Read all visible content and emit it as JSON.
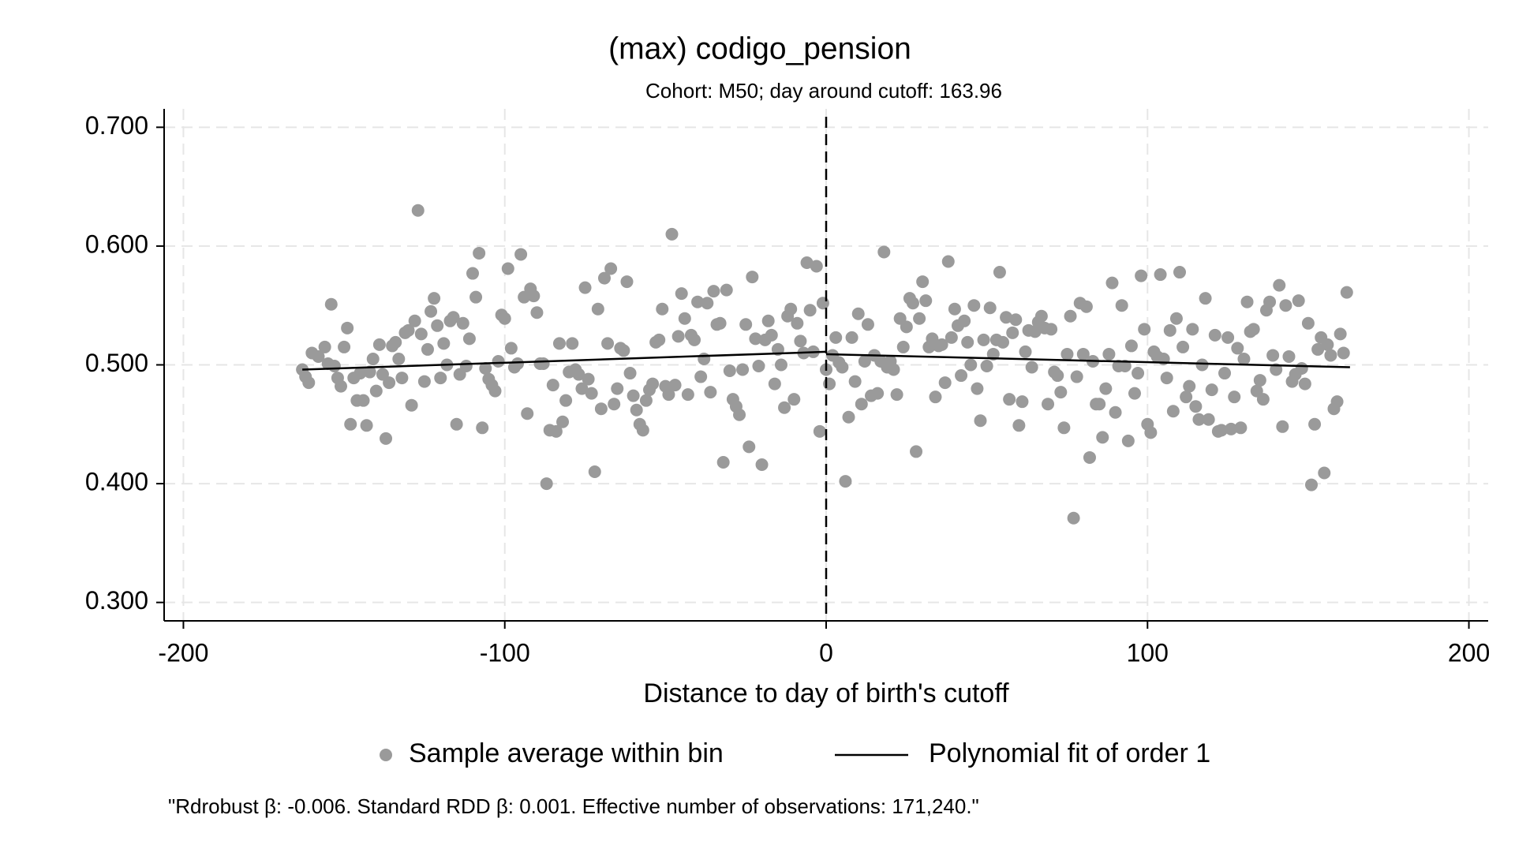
{
  "chart_data": {
    "type": "scatter",
    "title": "(max) codigo_pension",
    "subtitle": "Cohort: M50; day around cutoff: 163.96",
    "xlabel": "Distance to day of birth's cutoff",
    "note": "\"Rdrobust β: -0.006. Standard RDD β: 0.001. Effective number of observations: 171,240.\"",
    "xlim": [
      -206,
      206
    ],
    "ylim": [
      0.2845,
      0.7155
    ],
    "xticks": [
      -200,
      -100,
      0,
      100,
      200
    ],
    "yticks": [
      {
        "value": 0.3,
        "label": "0.300"
      },
      {
        "value": 0.4,
        "label": "0.400"
      },
      {
        "value": 0.5,
        "label": "0.500"
      },
      {
        "value": 0.6,
        "label": "0.600"
      },
      {
        "value": 0.7,
        "label": "0.700"
      }
    ],
    "grid": true,
    "cutoff": 0,
    "series": [
      {
        "name": "Sample average within bin",
        "color": "#9a9a9a",
        "x": [
          -163,
          -162,
          -161,
          -160,
          -158,
          -156,
          -155,
          -154,
          -153,
          -152,
          -151,
          -150,
          -149,
          -148,
          -147,
          -146,
          -145,
          -144,
          -143,
          -142,
          -141,
          -140,
          -139,
          -138,
          -137,
          -136,
          -135,
          -134,
          -133,
          -132,
          -131,
          -130,
          -129,
          -128,
          -127,
          -126,
          -125,
          -124,
          -123,
          -122,
          -121,
          -120,
          -119,
          -118,
          -117,
          -116,
          -115,
          -114,
          -113,
          -112,
          -111,
          -110,
          -109,
          -108,
          -107,
          -106,
          -105,
          -104,
          -103,
          -102,
          -101,
          -100,
          -99,
          -98,
          -97,
          -96,
          -95,
          -94,
          -93,
          -92,
          -91,
          -90,
          -89,
          -88,
          -87,
          -86,
          -85,
          -84,
          -83,
          -82,
          -81,
          -80,
          -79,
          -78,
          -77,
          -76,
          -75,
          -74,
          -73,
          -72,
          -71,
          -70,
          -69,
          -68,
          -67,
          -66,
          -65,
          -64,
          -63,
          -62,
          -61,
          -60,
          -59,
          -58,
          -57,
          -56,
          -55,
          -54,
          -53,
          -52,
          -51,
          -50,
          -49,
          -48,
          -47,
          -46,
          -45,
          -44,
          -43,
          -42,
          -41,
          -40,
          -39,
          -38,
          -37,
          -36,
          -35,
          -34,
          -33,
          -32,
          -31,
          -30,
          -29,
          -28,
          -27,
          -26,
          -25,
          -24,
          -23,
          -22,
          -21,
          -20,
          -19,
          -18,
          -17,
          -16,
          -15,
          -14,
          -13,
          -12,
          -11,
          -10,
          -9,
          -8,
          -7,
          -6,
          -5,
          -4,
          -3,
          -2,
          -1,
          0,
          1,
          2,
          3,
          4,
          5,
          6,
          7,
          8,
          9,
          10,
          11,
          12,
          13,
          14,
          15,
          16,
          17,
          18,
          19,
          20,
          21,
          22,
          23,
          24,
          25,
          26,
          27,
          28,
          29,
          30,
          31,
          32,
          33,
          34,
          35,
          36,
          37,
          38,
          39,
          40,
          41,
          42,
          43,
          44,
          45,
          46,
          47,
          48,
          49,
          50,
          51,
          52,
          53,
          54,
          55,
          56,
          57,
          58,
          59,
          60,
          61,
          62,
          63,
          64,
          65,
          66,
          67,
          68,
          69,
          70,
          71,
          72,
          73,
          74,
          75,
          76,
          77,
          78,
          79,
          80,
          81,
          82,
          83,
          84,
          85,
          86,
          87,
          88,
          89,
          90,
          91,
          92,
          93,
          94,
          95,
          96,
          97,
          98,
          99,
          100,
          101,
          102,
          103,
          104,
          105,
          106,
          107,
          108,
          109,
          110,
          111,
          112,
          113,
          114,
          115,
          116,
          117,
          118,
          119,
          120,
          121,
          122,
          123,
          124,
          125,
          126,
          127,
          128,
          129,
          130,
          131,
          132,
          133,
          134,
          135,
          136,
          137,
          138,
          139,
          140,
          141,
          142,
          143,
          144,
          145,
          146,
          147,
          148,
          149,
          150,
          151,
          152,
          153,
          154,
          155,
          156,
          157,
          158,
          159,
          160,
          161,
          162
        ],
        "values": [
          0.496,
          0.49,
          0.485,
          0.51,
          0.507,
          0.515,
          0.501,
          0.551,
          0.499,
          0.489,
          0.482,
          0.515,
          0.531,
          0.45,
          0.489,
          0.47,
          0.493,
          0.47,
          0.449,
          0.494,
          0.505,
          0.478,
          0.517,
          0.492,
          0.438,
          0.485,
          0.516,
          0.519,
          0.505,
          0.489,
          0.527,
          0.529,
          0.466,
          0.537,
          0.63,
          0.526,
          0.486,
          0.513,
          0.545,
          0.556,
          0.533,
          0.489,
          0.518,
          0.5,
          0.537,
          0.54,
          0.45,
          0.492,
          0.535,
          0.499,
          0.522,
          0.577,
          0.557,
          0.594,
          0.447,
          0.497,
          0.488,
          0.483,
          0.478,
          0.503,
          0.542,
          0.539,
          0.581,
          0.514,
          0.498,
          0.501,
          0.593,
          0.557,
          0.459,
          0.564,
          0.558,
          0.544,
          0.501,
          0.501,
          0.4,
          0.445,
          0.483,
          0.444,
          0.518,
          0.452,
          0.47,
          0.494,
          0.518,
          0.496,
          0.492,
          0.48,
          0.565,
          0.488,
          0.476,
          0.41,
          0.547,
          0.463,
          0.573,
          0.518,
          0.581,
          0.467,
          0.48,
          0.514,
          0.512,
          0.57,
          0.493,
          0.474,
          0.462,
          0.45,
          0.445,
          0.47,
          0.479,
          0.484,
          0.519,
          0.521,
          0.547,
          0.482,
          0.475,
          0.61,
          0.483,
          0.524,
          0.56,
          0.539,
          0.475,
          0.525,
          0.521,
          0.553,
          0.49,
          0.505,
          0.552,
          0.477,
          0.562,
          0.534,
          0.535,
          0.418,
          0.563,
          0.495,
          0.471,
          0.465,
          0.458,
          0.496,
          0.534,
          0.431,
          0.574,
          0.522,
          0.499,
          0.416,
          0.521,
          0.537,
          0.525,
          0.484,
          0.513,
          0.5,
          0.464,
          0.541,
          0.547,
          0.471,
          0.535,
          0.52,
          0.51,
          0.586,
          0.546,
          0.511,
          0.583,
          0.444,
          0.552,
          0.496,
          0.484,
          0.508,
          0.523,
          0.502,
          0.498,
          0.402,
          0.456,
          0.523,
          0.486,
          0.543,
          0.467,
          0.503,
          0.534,
          0.474,
          0.508,
          0.476,
          0.503,
          0.595,
          0.498,
          0.503,
          0.496,
          0.475,
          0.539,
          0.515,
          0.532,
          0.556,
          0.552,
          0.427,
          0.539,
          0.57,
          0.554,
          0.515,
          0.522,
          0.473,
          0.516,
          0.517,
          0.485,
          0.587,
          0.523,
          0.547,
          0.533,
          0.491,
          0.537,
          0.519,
          0.5,
          0.55,
          0.48,
          0.453,
          0.521,
          0.499,
          0.548,
          0.509,
          0.521,
          0.578,
          0.519,
          0.54,
          0.471,
          0.527,
          0.538,
          0.449,
          0.469,
          0.511,
          0.529,
          0.498,
          0.528,
          0.536,
          0.541,
          0.531,
          0.467,
          0.53,
          0.494,
          0.491,
          0.477,
          0.447,
          0.509,
          0.541,
          0.371,
          0.49,
          0.552,
          0.509,
          0.549,
          0.422,
          0.503,
          0.467,
          0.467,
          0.439,
          0.48,
          0.509,
          0.569,
          0.46,
          0.499,
          0.55,
          0.499,
          0.436,
          0.516,
          0.476,
          0.493,
          0.575,
          0.53,
          0.45,
          0.443,
          0.511,
          0.507,
          0.576,
          0.505,
          0.489,
          0.529,
          0.461,
          0.539,
          0.578,
          0.515,
          0.473,
          0.482,
          0.53,
          0.465,
          0.454,
          0.5,
          0.556,
          0.454,
          0.479,
          0.525,
          0.444,
          0.445,
          0.493,
          0.523,
          0.446,
          0.473,
          0.514,
          0.447,
          0.505,
          0.553,
          0.528,
          0.53,
          0.478,
          0.487,
          0.471,
          0.546,
          0.553,
          0.508,
          0.496,
          0.567,
          0.448,
          0.55,
          0.507,
          0.486,
          0.492,
          0.554,
          0.497,
          0.484,
          0.535,
          0.399,
          0.45,
          0.513,
          0.523,
          0.409,
          0.517,
          0.508,
          0.463,
          0.469,
          0.526,
          0.51,
          0.561
        ]
      }
    ],
    "fit": {
      "name": "Polynomial fit of order 1",
      "color": "#000000",
      "segments": [
        {
          "x": [
            -163,
            0
          ],
          "values": [
            0.496,
            0.511
          ]
        },
        {
          "x": [
            0,
            163
          ],
          "values": [
            0.509,
            0.498
          ]
        }
      ]
    }
  }
}
